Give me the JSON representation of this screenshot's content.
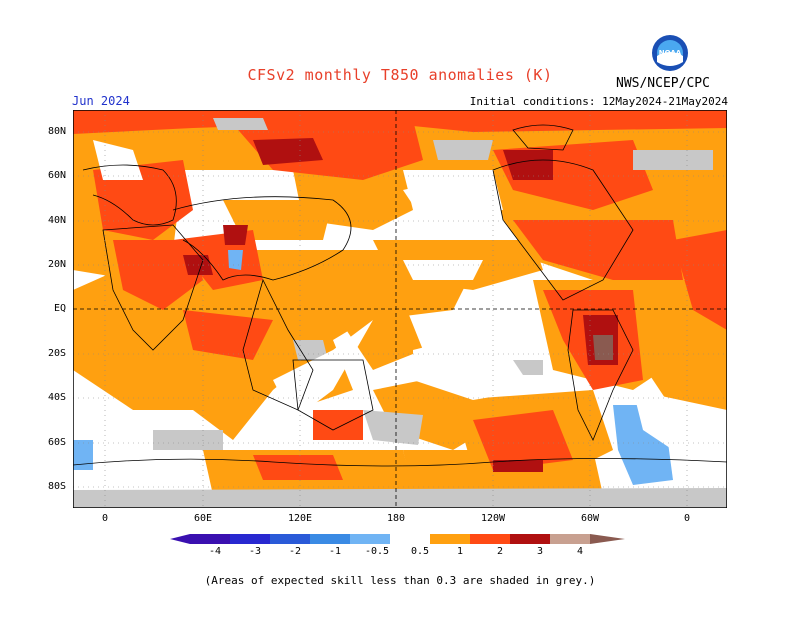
{
  "header": {
    "title": "CFSv2 monthly T850 anomalies (K)",
    "month": "Jun 2024",
    "initial_conditions": "Initial conditions: 12May2024-21May2024",
    "agency": "NWS/NCEP/CPC",
    "logo_text": "NOAA"
  },
  "map": {
    "lat_labels": [
      "80N",
      "60N",
      "40N",
      "20N",
      "EQ",
      "20S",
      "40S",
      "60S",
      "80S"
    ],
    "lon_labels": [
      "0",
      "60E",
      "120E",
      "180",
      "120W",
      "60W",
      "0"
    ],
    "colors": {
      "ocean_bg": "#ffffff",
      "skill_grey": "#c8c8c8",
      "anom_pos_0_5": "#ffa010",
      "anom_pos_1": "#ff4a14",
      "anom_pos_2": "#b01010",
      "anom_pos_3": "#6e1010",
      "anom_pos_4": "#8a5a50",
      "anom_neg_0_5": "#70b4f4",
      "anom_neg_1": "#3a8ae4"
    }
  },
  "colorbar": {
    "labels": [
      "-4",
      "-3",
      "-2",
      "-1",
      "-0.5",
      "0.5",
      "1",
      "2",
      "3",
      "4"
    ],
    "colors": [
      "#3a10b0",
      "#2828d0",
      "#2a5ad8",
      "#3a8ae4",
      "#70b4f4",
      "#ffffff",
      "#ffa010",
      "#ff4a14",
      "#b01010",
      "#6e1010",
      "#c8a090",
      "#8a5a50"
    ]
  },
  "footnote": "(Areas of expected skill less than 0.3 are shaded in grey.)"
}
